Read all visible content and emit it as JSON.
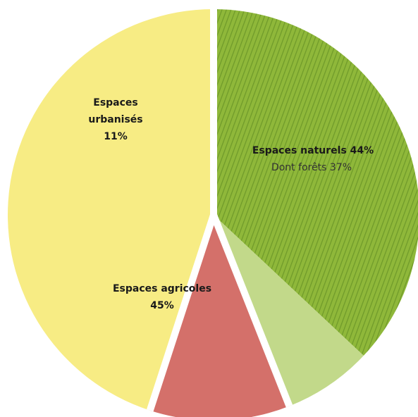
{
  "chart_data": {
    "type": "pie",
    "start_angle_deg": 0,
    "direction": "clockwise",
    "slices": [
      {
        "name": "Espaces naturels",
        "value": 37,
        "color": "#8fb83a",
        "pattern": "hatch",
        "group": "naturels"
      },
      {
        "name": "Espaces naturels (hors forêts)",
        "value": 7,
        "color": "#c2d98a",
        "pattern": "solid",
        "group": "naturels"
      },
      {
        "name": "Espaces urbanisés",
        "value": 11,
        "color": "#d4706a",
        "pattern": "solid",
        "group": "urbanises"
      },
      {
        "name": "Espaces agricoles",
        "value": 45,
        "color": "#f7ec84",
        "pattern": "solid",
        "group": "agricoles"
      }
    ],
    "labels": {
      "naturels": {
        "line1": "Espaces naturels 44%",
        "line2": "Dont forêts 37%"
      },
      "urbanises": {
        "line1": "Espaces",
        "line2": "urbanisés",
        "line3": "11%"
      },
      "agricoles": {
        "line1": "Espaces agricoles",
        "line2": "45%"
      }
    },
    "hatch_color": "#6f9a2a",
    "separator_color": "#ffffff"
  }
}
